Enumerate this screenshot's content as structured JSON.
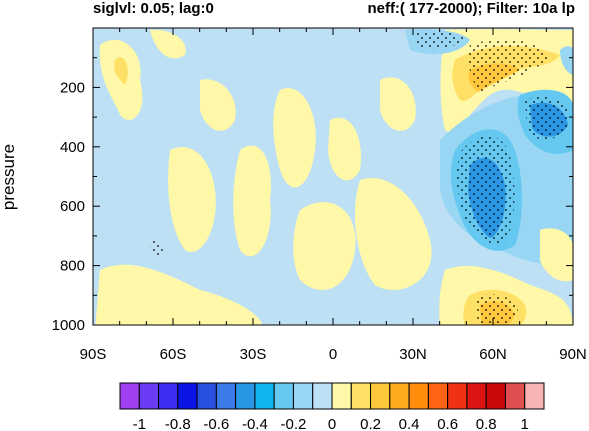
{
  "header": {
    "left": "siglvl: 0.05; lag:0",
    "right": "neff:( 177-2000); Filter: 10a lp"
  },
  "chart_data": {
    "type": "heatmap",
    "title": "",
    "xlabel": "",
    "ylabel": "pressure",
    "x_ticks": [
      "90S",
      "60S",
      "30S",
      "0",
      "30N",
      "60N",
      "90N"
    ],
    "x_range": [
      -90,
      90
    ],
    "y_ticks": [
      "200",
      "400",
      "600",
      "800",
      "1000"
    ],
    "y_range": [
      0,
      1000
    ],
    "y_axis": "pressure, increasing downward",
    "colorbar": {
      "orientation": "horizontal",
      "labels": [
        "-1",
        "-0.8",
        "-0.6",
        "-0.4",
        "-0.2",
        "0",
        "0.2",
        "0.4",
        "0.6",
        "0.8",
        "1"
      ],
      "levels": [
        -1,
        -0.9,
        -0.8,
        -0.7,
        -0.6,
        -0.5,
        -0.4,
        -0.3,
        -0.2,
        -0.1,
        0,
        0.1,
        0.2,
        0.3,
        0.4,
        0.5,
        0.6,
        0.7,
        0.8,
        0.9,
        1
      ],
      "colors": [
        "#a040f0",
        "#6a3cf5",
        "#3c2ef0",
        "#0a14e6",
        "#2a50e0",
        "#3c7ae8",
        "#2a96e6",
        "#10b4ee",
        "#64c8f0",
        "#98d6f4",
        "#bee0f4",
        "#fff8a8",
        "#ffe066",
        "#ffc83c",
        "#ffaa1e",
        "#ff8c0a",
        "#ff6414",
        "#f03214",
        "#dc1414",
        "#c80a0a",
        "#e05050",
        "#f8b4b4"
      ]
    },
    "features": [
      {
        "label": "positive core",
        "x": [
          42,
          88
        ],
        "y": [
          20,
          260
        ],
        "value": 0.3,
        "stippled": true
      },
      {
        "label": "negative core",
        "x": [
          42,
          72
        ],
        "y": [
          400,
          850
        ],
        "value": -0.35,
        "stippled": true
      },
      {
        "label": "negative core",
        "x": [
          68,
          90
        ],
        "y": [
          180,
          400
        ],
        "value": -0.4,
        "stippled": true
      },
      {
        "label": "negative core",
        "x": [
          30,
          50
        ],
        "y": [
          0,
          60
        ],
        "value": -0.2,
        "stippled": true
      },
      {
        "label": "positive core",
        "x": [
          52,
          72
        ],
        "y": [
          900,
          1000
        ],
        "value": 0.35,
        "stippled": true
      },
      {
        "label": "background",
        "x": [
          -90,
          30
        ],
        "y": [
          0,
          1000
        ],
        "value": 0.0,
        "stippled": false
      }
    ]
  }
}
